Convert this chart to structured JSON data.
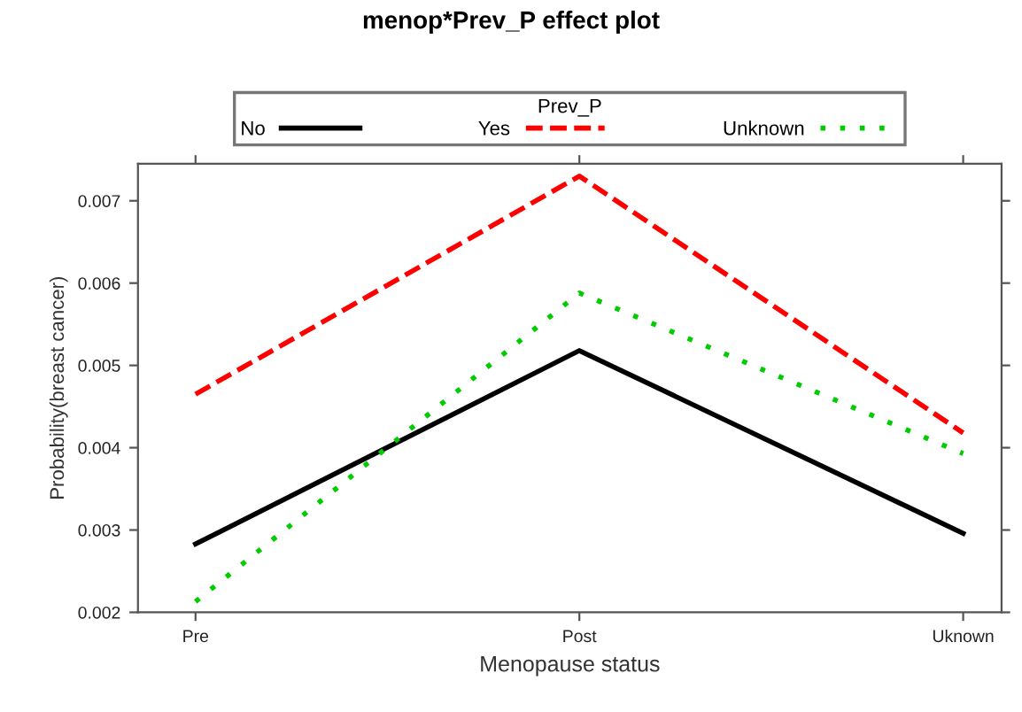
{
  "chart_data": {
    "type": "line",
    "title": "menop*Prev_P effect plot",
    "xlabel": "Menopause status",
    "ylabel": "Probability(breast cancer)",
    "legend_title": "Prev_P",
    "legend": "top",
    "grid": false,
    "marker": "none",
    "categories": [
      "Pre",
      "Post",
      "Uknown"
    ],
    "ylim": [
      0.002,
      0.00745
    ],
    "yticks": [
      0.002,
      0.003,
      0.004,
      0.005,
      0.006,
      0.007
    ],
    "series": [
      {
        "name": "No",
        "color": "#000000",
        "line_style": "solid",
        "values": [
          0.00283,
          0.00518,
          0.00296
        ]
      },
      {
        "name": "Yes",
        "color": "#ff0000",
        "line_style": "dashed",
        "values": [
          0.00465,
          0.0073,
          0.00418
        ]
      },
      {
        "name": "Unknown",
        "color": "#00cc00",
        "line_style": "dotted",
        "values": [
          0.00213,
          0.00588,
          0.00393
        ]
      }
    ]
  }
}
